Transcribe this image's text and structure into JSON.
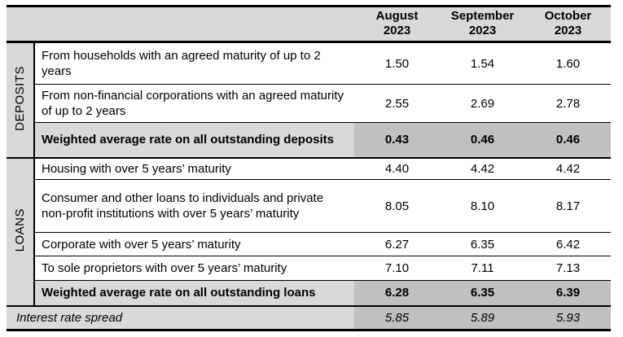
{
  "table": {
    "header": {
      "columns": [
        "August\n2023",
        "September\n2023",
        "October\n2023"
      ]
    },
    "sections": [
      {
        "label": "DEPOSITS",
        "rows": [
          {
            "desc": "From households with an agreed maturity of up to 2 years",
            "values": [
              "1.50",
              "1.54",
              "1.60"
            ]
          },
          {
            "desc": "From non-financial corporations with an agreed maturity of up to 2 years",
            "values": [
              "2.55",
              "2.69",
              "2.78"
            ]
          },
          {
            "desc": "Weighted average rate on all outstanding deposits",
            "values": [
              "0.43",
              "0.46",
              "0.46"
            ]
          }
        ]
      },
      {
        "label": "LOANS",
        "rows": [
          {
            "desc": "Housing with over 5 years’ maturity",
            "values": [
              "4.40",
              "4.42",
              "4.42"
            ]
          },
          {
            "desc": "Consumer and other loans to individuals and private non-profit institutions with over 5 years’ maturity",
            "values": [
              "8.05",
              "8.10",
              "8.17"
            ]
          },
          {
            "desc": "Corporate with over 5 years’ maturity",
            "values": [
              "6.27",
              "6.35",
              "6.42"
            ]
          },
          {
            "desc": "To sole proprietors with over 5 years’ maturity",
            "values": [
              "7.10",
              "7.11",
              "7.13"
            ]
          },
          {
            "desc": "Weighted average rate on all outstanding loans",
            "values": [
              "6.28",
              "6.35",
              "6.39"
            ]
          }
        ]
      }
    ],
    "footer": {
      "desc": "Interest rate spread",
      "values": [
        "5.85",
        "5.89",
        "5.93"
      ]
    },
    "colors": {
      "header_bg": "#d9d9d9",
      "highlight_bg": "#c0c0c0",
      "border": "#000000"
    }
  }
}
